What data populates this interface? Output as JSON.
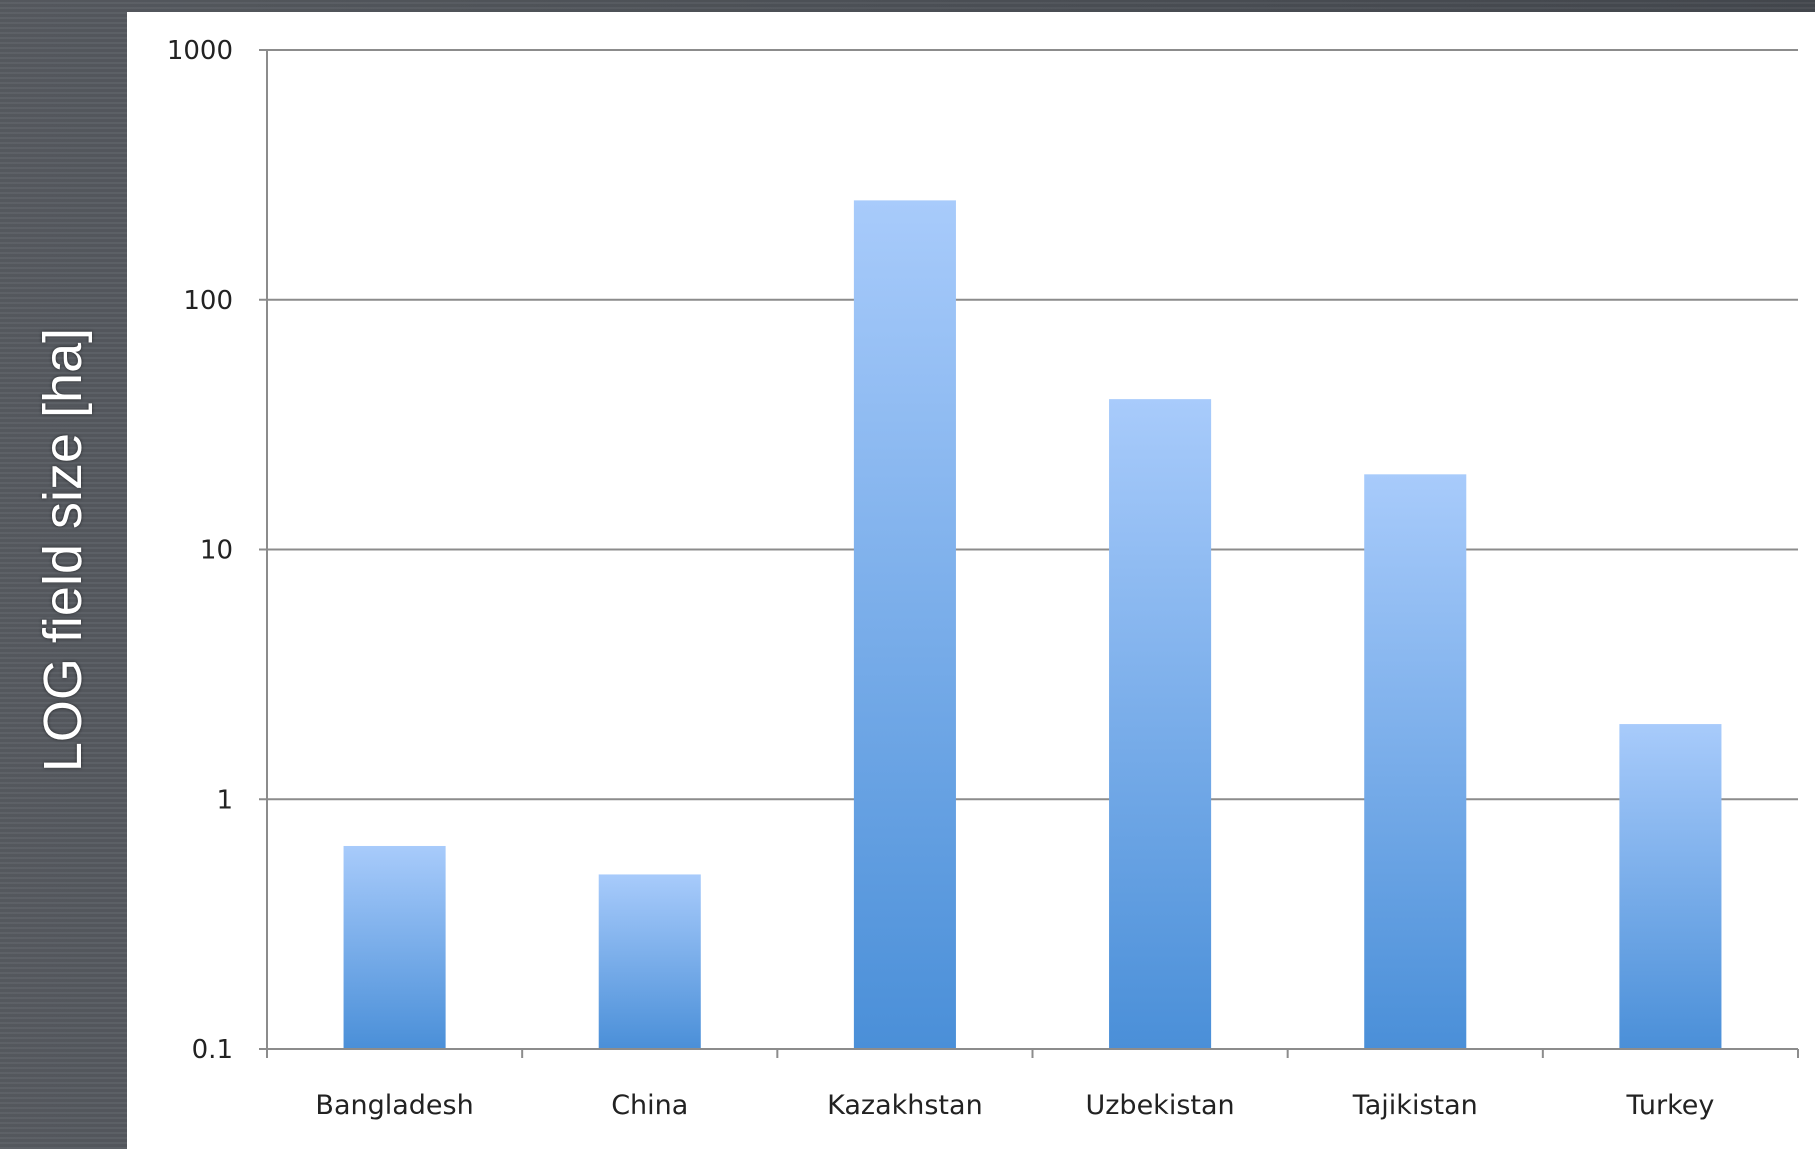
{
  "chart_data": {
    "type": "bar",
    "scale": "log",
    "ylabel": "LOG field size [ha]",
    "xlabel": "",
    "title": "",
    "categories": [
      "Bangladesh",
      "China",
      "Kazakhstan",
      "Uzbekistan",
      "Tajikistan",
      "Turkey"
    ],
    "values": [
      0.65,
      0.5,
      250,
      40,
      20,
      2
    ],
    "ylim": [
      0.1,
      1000
    ],
    "yticks": [
      "0.1",
      "1",
      "10",
      "100",
      "1000"
    ],
    "grid": true,
    "legend": "none",
    "bar_color_top": "#a8cbfb",
    "bar_color_bottom": "#4a8fd8"
  }
}
